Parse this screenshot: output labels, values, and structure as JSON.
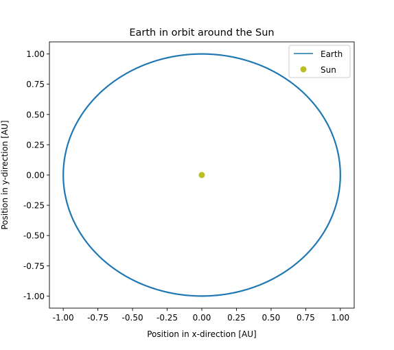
{
  "chart_data": {
    "type": "line",
    "title": "Earth in orbit around the Sun",
    "xlabel": "Position in x-direction [AU]",
    "ylabel": "Position in y-direction [AU]",
    "xlim": [
      -1.1,
      1.1
    ],
    "ylim": [
      -1.1,
      1.1
    ],
    "x_ticks": [
      "-1.00",
      "-0.75",
      "-0.50",
      "-0.25",
      "0.00",
      "0.25",
      "0.50",
      "0.75",
      "1.00"
    ],
    "y_ticks": [
      "-1.00",
      "-0.75",
      "-0.50",
      "-0.25",
      "0.00",
      "0.25",
      "0.50",
      "0.75",
      "1.00"
    ],
    "grid": false,
    "legend_position": "top-right",
    "series": [
      {
        "name": "Earth",
        "kind": "line",
        "color": "#1f77b4",
        "orbit": {
          "center_x": 0.0,
          "center_y": 0.0,
          "radius_x": 1.0,
          "radius_y": 1.0
        }
      },
      {
        "name": "Sun",
        "kind": "scatter",
        "color": "#bcbd22",
        "points": [
          {
            "x": 0.0,
            "y": 0.0
          }
        ]
      }
    ]
  }
}
